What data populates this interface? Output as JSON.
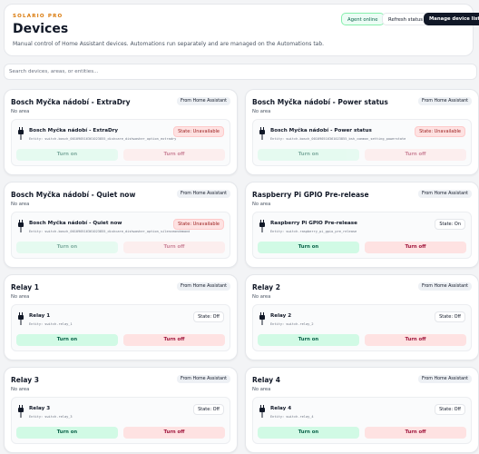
{
  "header": {
    "brand": "SOLARIO PRO",
    "title": "Devices",
    "description": "Manual control of Home Assistant devices. Automations run separately and are managed on the Automations tab.",
    "status": "Agent online",
    "refresh": "Refresh status",
    "manage": "Manage device list"
  },
  "search": {
    "placeholder": "Search devices, areas, or entities..."
  },
  "cards": [
    {
      "title": "Bosch Myčka nádobí - ExtraDry",
      "source": "From Home Assistant",
      "area": "No area",
      "entity": "Bosch Myčka nádobí - ExtraDry",
      "entity_id": "Entity: switch.bosch_001090516361023855_dishcare_dishwasher_option_extradry",
      "state": "State: Unavailable",
      "turn_on": "Turn on",
      "turn_off": "Turn off"
    },
    {
      "title": "Bosch Myčka nádobí - Power status",
      "source": "From Home Assistant",
      "area": "No area",
      "entity": "Bosch Myčka nádobí - Power status",
      "entity_id": "Entity: switch.bosch_001090516361023855_bsh_common_setting_powerstate",
      "state": "State: Unavailable",
      "turn_on": "Turn on",
      "turn_off": "Turn off"
    },
    {
      "title": "Bosch Myčka nádobí - Quiet now",
      "source": "From Home Assistant",
      "area": "No area",
      "entity": "Bosch Myčka nádobí - Quiet now",
      "entity_id": "Entity: switch.bosch_001090516361023855_dishcare_dishwasher_option_silenceondemand",
      "state": "State: Unavailable",
      "turn_on": "Turn on",
      "turn_off": "Turn off"
    },
    {
      "title": "Raspberry Pi GPIO Pre-release",
      "source": "From Home Assistant",
      "area": "No area",
      "entity": "Raspberry Pi GPIO Pre-release",
      "entity_id": "Entity: switch.raspberry_pi_gpio_pre_release",
      "state": "State: On",
      "turn_on": "Turn on",
      "turn_off": "Turn off"
    },
    {
      "title": "Relay 1",
      "source": "From Home Assistant",
      "area": "No area",
      "entity": "Relay 1",
      "entity_id": "Entity: switch.relay_1",
      "state": "State: Off",
      "turn_on": "Turn on",
      "turn_off": "Turn off"
    },
    {
      "title": "Relay 2",
      "source": "From Home Assistant",
      "area": "No area",
      "entity": "Relay 2",
      "entity_id": "Entity: switch.relay_2",
      "state": "State: Off",
      "turn_on": "Turn on",
      "turn_off": "Turn off"
    },
    {
      "title": "Relay 3",
      "source": "From Home Assistant",
      "area": "No area",
      "entity": "Relay 3",
      "entity_id": "Entity: switch.relay_3",
      "state": "State: Off",
      "turn_on": "Turn on",
      "turn_off": "Turn off"
    },
    {
      "title": "Relay 4",
      "source": "From Home Assistant",
      "area": "No area",
      "entity": "Relay 4",
      "entity_id": "Entity: switch.relay_4",
      "state": "State: Off",
      "turn_on": "Turn on",
      "turn_off": "Turn off"
    }
  ]
}
